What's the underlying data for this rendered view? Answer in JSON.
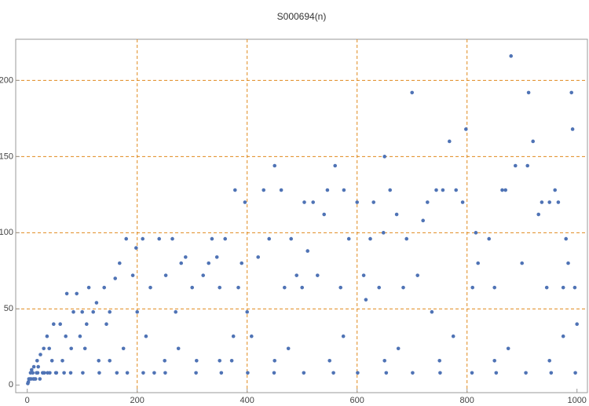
{
  "chart_data": {
    "type": "scatter",
    "title": "S000694(n)",
    "color": "#4f73b5",
    "grid": true,
    "xlim": [
      -21,
      1019
    ],
    "ylim": [
      -5,
      227
    ],
    "xticks": [
      0,
      200,
      400,
      600,
      800,
      1000
    ],
    "yticks": [
      0,
      50,
      100,
      150,
      200
    ],
    "xgrid": [
      200,
      400,
      600,
      800
    ],
    "ygrid": [
      50,
      100,
      150,
      200
    ],
    "x": [
      1,
      2,
      3,
      5,
      6,
      8,
      10,
      12,
      15,
      18,
      20,
      24,
      28,
      30,
      36,
      40,
      45,
      48,
      52,
      60,
      64,
      70,
      72,
      80,
      84,
      90,
      96,
      100,
      105,
      108,
      112,
      120,
      126,
      130,
      140,
      144,
      150,
      160,
      168,
      180,
      182,
      192,
      198,
      200,
      210,
      216,
      224,
      231,
      240,
      252,
      264,
      270,
      280,
      288,
      300,
      308,
      320,
      330,
      336,
      345,
      350,
      360,
      372,
      378,
      384,
      390,
      396,
      400,
      408,
      420,
      430,
      440,
      450,
      462,
      468,
      480,
      490,
      500,
      504,
      510,
      520,
      528,
      540,
      546,
      560,
      570,
      576,
      585,
      600,
      612,
      616,
      624,
      630,
      640,
      648,
      650,
      660,
      672,
      684,
      690,
      700,
      710,
      720,
      728,
      736,
      744,
      756,
      768,
      780,
      792,
      798,
      810,
      816,
      820,
      840,
      850,
      864,
      870,
      880,
      888,
      900,
      910,
      912,
      920,
      930,
      936,
      945,
      950,
      960,
      966,
      975,
      980,
      984,
      990,
      992,
      996,
      1000,
      7,
      11,
      13,
      17,
      19,
      23,
      29,
      31,
      37,
      41,
      53,
      67,
      79,
      101,
      131,
      163,
      211,
      251,
      307,
      353,
      401,
      449,
      503,
      557,
      601,
      653,
      701,
      751,
      809,
      853,
      907,
      953,
      997,
      150,
      250,
      350,
      450,
      550,
      650,
      750,
      850,
      950,
      175,
      275,
      375,
      475,
      575,
      675,
      775,
      875,
      975
    ],
    "y": [
      1,
      2,
      4,
      4,
      8,
      10,
      8,
      12,
      4,
      16,
      12,
      20,
      8,
      24,
      32,
      24,
      16,
      40,
      8,
      40,
      16,
      32,
      60,
      24,
      48,
      60,
      32,
      48,
      24,
      40,
      64,
      48,
      54,
      16,
      64,
      40,
      48,
      70,
      80,
      96,
      8,
      72,
      90,
      48,
      96,
      32,
      64,
      8,
      96,
      72,
      96,
      48,
      80,
      84,
      64,
      16,
      72,
      80,
      96,
      84,
      64,
      96,
      16,
      128,
      64,
      80,
      120,
      48,
      32,
      84,
      128,
      96,
      144,
      128,
      64,
      96,
      72,
      64,
      120,
      88,
      120,
      72,
      112,
      128,
      144,
      64,
      128,
      96,
      120,
      72,
      56,
      96,
      120,
      64,
      100,
      150,
      128,
      112,
      64,
      96,
      192,
      72,
      108,
      120,
      48,
      128,
      128,
      160,
      128,
      120,
      168,
      64,
      100,
      80,
      96,
      64,
      128,
      128,
      216,
      144,
      80,
      144,
      192,
      160,
      112,
      120,
      64,
      120,
      128,
      120,
      64,
      96,
      80,
      192,
      168,
      64,
      40,
      4,
      4,
      4,
      8,
      8,
      4,
      8,
      8,
      8,
      8,
      8,
      8,
      8,
      8,
      8,
      8,
      8,
      8,
      8,
      8,
      8,
      8,
      8,
      8,
      8,
      8,
      8,
      8,
      8,
      8,
      8,
      8,
      8,
      16,
      16,
      16,
      16,
      16,
      16,
      16,
      16,
      16,
      24,
      24,
      32,
      24,
      32,
      24,
      32,
      24,
      32
    ]
  }
}
